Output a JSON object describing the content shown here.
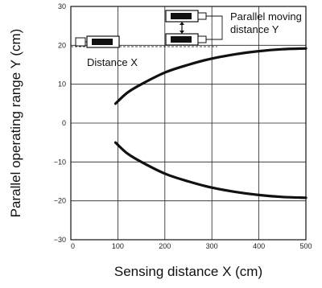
{
  "chart_data": {
    "type": "line",
    "xlabel": "Sensing distance X (cm)",
    "ylabel": "Parallel operating range Y  (cm)",
    "xlim": [
      0,
      500
    ],
    "ylim": [
      -30,
      30
    ],
    "x_ticks": [
      0,
      100,
      200,
      300,
      400,
      500
    ],
    "y_ticks": [
      30,
      20,
      10,
      0,
      -10,
      -20,
      -30
    ],
    "grid": true,
    "series": [
      {
        "x": [
          95,
          120,
          150,
          200,
          250,
          300,
          350,
          400,
          450,
          500
        ],
        "y": [
          5.0,
          7.8,
          10.0,
          13.0,
          15.0,
          16.6,
          17.7,
          18.5,
          19.0,
          19.2
        ]
      },
      {
        "x": [
          95,
          120,
          150,
          200,
          250,
          300,
          350,
          400,
          450,
          500
        ],
        "y": [
          -5.0,
          -7.8,
          -10.0,
          -13.0,
          -15.0,
          -16.6,
          -17.7,
          -18.5,
          -19.0,
          -19.2
        ]
      }
    ],
    "annotations": {
      "distance_x": "Distance X",
      "parallel_line1": "Parallel moving",
      "parallel_line2": "distance Y"
    }
  }
}
